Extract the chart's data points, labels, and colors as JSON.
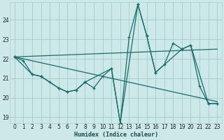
{
  "xlabel": "Humidex (Indice chaleur)",
  "bg_color": "#cce8e8",
  "grid_color": "#aacfcf",
  "line_color": "#1a6b6b",
  "xlim": [
    -0.5,
    23.5
  ],
  "ylim": [
    18.7,
    24.9
  ],
  "yticks": [
    19,
    20,
    21,
    22,
    23,
    24
  ],
  "xticks": [
    0,
    1,
    2,
    3,
    4,
    5,
    6,
    7,
    8,
    9,
    10,
    11,
    12,
    13,
    14,
    15,
    16,
    17,
    18,
    19,
    20,
    21,
    22,
    23
  ],
  "lines": [
    {
      "x": [
        0,
        1,
        2,
        3,
        4,
        5,
        6,
        7,
        8,
        9,
        10,
        11,
        12,
        13,
        14,
        15,
        16,
        17,
        18,
        19,
        20,
        21,
        22,
        23
      ],
      "y": [
        22.1,
        21.9,
        21.2,
        21.1,
        20.8,
        20.5,
        20.3,
        20.4,
        20.8,
        20.5,
        21.1,
        21.5,
        18.7,
        23.1,
        24.8,
        23.2,
        21.3,
        21.7,
        22.8,
        22.5,
        22.7,
        20.6,
        19.7,
        19.7
      ],
      "marker": true
    },
    {
      "x": [
        0,
        23
      ],
      "y": [
        22.1,
        22.5
      ],
      "marker": false
    },
    {
      "x": [
        0,
        23
      ],
      "y": [
        22.1,
        19.8
      ],
      "marker": false
    },
    {
      "x": [
        0,
        2,
        3,
        5,
        6,
        7,
        8,
        11,
        12,
        14,
        15,
        16,
        19,
        20,
        22,
        23
      ],
      "y": [
        22.1,
        21.2,
        21.1,
        20.5,
        20.3,
        20.4,
        20.8,
        21.5,
        18.7,
        24.8,
        23.2,
        21.3,
        22.5,
        22.7,
        19.7,
        19.7
      ],
      "marker": true
    }
  ]
}
